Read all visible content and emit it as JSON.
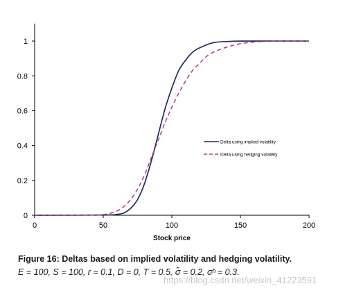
{
  "chart_data": {
    "type": "line",
    "title": "",
    "xlabel": "Stock price",
    "ylabel": "",
    "xlim": [
      0,
      200
    ],
    "ylim": [
      0,
      1.1
    ],
    "xticks": [
      "0",
      "50",
      "100",
      "150",
      "200"
    ],
    "yticks": [
      "0",
      "0.2",
      "0.4",
      "0.6",
      "0.8",
      "1"
    ],
    "xtick_values": [
      0,
      50,
      100,
      150,
      200
    ],
    "ytick_values": [
      0,
      0.2,
      0.4,
      0.6,
      0.8,
      1
    ],
    "grid": false,
    "legend_position": "right",
    "series": [
      {
        "name": "Delta using implied volatility",
        "color": "#1f2d5c",
        "style": "solid",
        "x": [
          0,
          50,
          60,
          65,
          70,
          75,
          80,
          85,
          90,
          95,
          100,
          105,
          110,
          115,
          120,
          130,
          140,
          150,
          160,
          180,
          200
        ],
        "y": [
          0,
          0.001,
          0.005,
          0.013,
          0.04,
          0.09,
          0.18,
          0.31,
          0.46,
          0.61,
          0.73,
          0.83,
          0.89,
          0.935,
          0.96,
          0.99,
          0.997,
          1,
          1,
          1,
          1
        ]
      },
      {
        "name": "Delta using hedging volatility",
        "color": "#b03a8c",
        "style": "dashed",
        "x": [
          0,
          45,
          50,
          55,
          60,
          65,
          70,
          75,
          80,
          85,
          90,
          95,
          100,
          105,
          110,
          115,
          120,
          125,
          130,
          140,
          150,
          160,
          170,
          180,
          200
        ],
        "y": [
          0,
          0.001,
          0.004,
          0.011,
          0.024,
          0.05,
          0.09,
          0.15,
          0.23,
          0.33,
          0.43,
          0.53,
          0.62,
          0.7,
          0.77,
          0.83,
          0.87,
          0.91,
          0.935,
          0.965,
          0.985,
          0.994,
          0.998,
          1,
          1
        ]
      }
    ]
  },
  "caption": {
    "line1": "Figure 16:  Deltas based on implied volatility and hedging volatility.",
    "line2": "E = 100, S = 100, r = 0.1, D = 0, T = 0.5, σ̃ = 0.2, σʰ = 0.3."
  },
  "watermark": "https://blog.csdn.net/weixin_41223591"
}
